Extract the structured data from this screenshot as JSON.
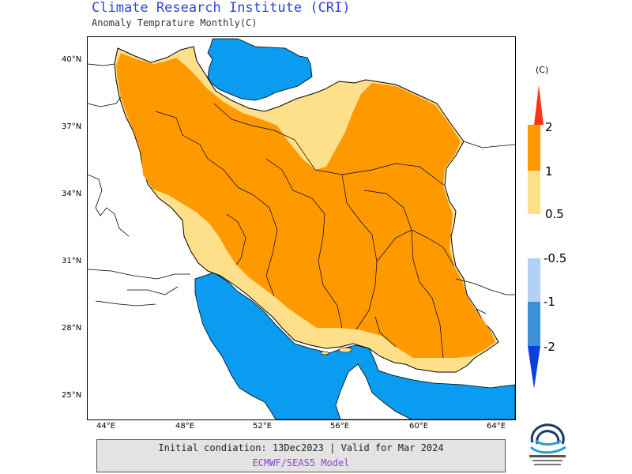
{
  "header": {
    "title": "Climate Research Institute (CRI)",
    "subtitle": "Anomaly Temprature Monthly(C)"
  },
  "axes": {
    "lat_ticks": [
      "40°N",
      "37°N",
      "34°N",
      "31°N",
      "28°N",
      "25°N"
    ],
    "lon_ticks": [
      "44°E",
      "48°E",
      "52°E",
      "56°E",
      "60°E",
      "64°E"
    ]
  },
  "legend": {
    "unit": "(C)",
    "warm_labels": [
      "2",
      "1",
      "0.5"
    ],
    "cold_labels": [
      "-0.5",
      "-1",
      "-2"
    ],
    "colors": {
      "warm_strong": "#ff3311",
      "warm": "#ff9900",
      "warm_light": "#ffe08a",
      "cold_light": "#b3d0f5",
      "cold": "#3d8fd6",
      "cold_strong": "#0b3fe0",
      "sea": "#0a9cf0"
    }
  },
  "footer": {
    "line1": "Initial condiation: 13Dec2023 | Valid for Mar 2024",
    "line2": "ECMWF/SEAS5 Model"
  },
  "logo": {
    "name": "rimas-logo-icon"
  }
}
